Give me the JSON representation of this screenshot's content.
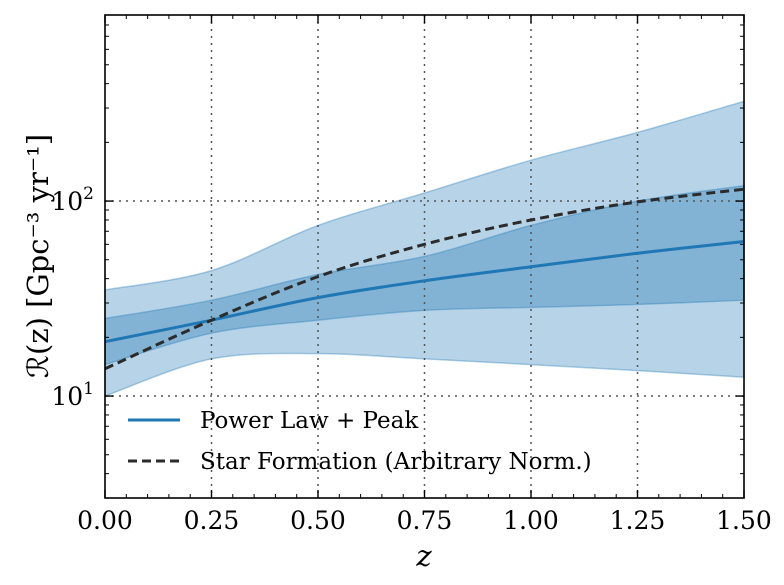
{
  "chart_data": {
    "type": "line",
    "title": "",
    "xlabel": "z",
    "ylabel": "ℛ(z) [Gpc⁻³ yr⁻¹]",
    "xlim": [
      0,
      1.5
    ],
    "ylim": [
      3,
      900
    ],
    "yscale": "log",
    "grid": "dotted lines at major ticks",
    "x_ticks": [
      0,
      0.25,
      0.5,
      0.75,
      1.0,
      1.25,
      1.5
    ],
    "x_tick_labels": [
      "0.00",
      "0.25",
      "0.50",
      "0.75",
      "1.00",
      "1.25",
      "1.50"
    ],
    "y_ticks": [
      {
        "value": 10,
        "base": "10",
        "exp": "1"
      },
      {
        "value": 100,
        "base": "10",
        "exp": "2"
      }
    ],
    "legend_position": "lower-left",
    "x": [
      0,
      0.25,
      0.5,
      0.75,
      1.0,
      1.25,
      1.5
    ],
    "series": [
      {
        "name": "Power Law + Peak",
        "style": "solid",
        "color": "#1f77b4",
        "values": [
          19,
          24.5,
          32,
          39,
          46,
          54,
          62
        ]
      },
      {
        "name": "Star Formation (Arbitrary Norm.)",
        "style": "dashed",
        "color": "#2b2b2b",
        "values": [
          13.8,
          24.5,
          41,
          60,
          80,
          99,
          115
        ]
      }
    ],
    "bands": [
      {
        "level": "outer",
        "color": "#1f77b4",
        "lower": [
          10,
          15.5,
          16.5,
          15.5,
          14.5,
          13.5,
          12.5
        ],
        "upper": [
          35,
          44,
          75,
          110,
          162,
          225,
          325
        ]
      },
      {
        "level": "inner",
        "color": "#1f77b4",
        "lower": [
          14.5,
          21,
          24.5,
          27.5,
          28.5,
          29.5,
          31
        ],
        "upper": [
          25,
          31,
          42,
          52,
          75,
          100,
          120
        ]
      }
    ]
  }
}
